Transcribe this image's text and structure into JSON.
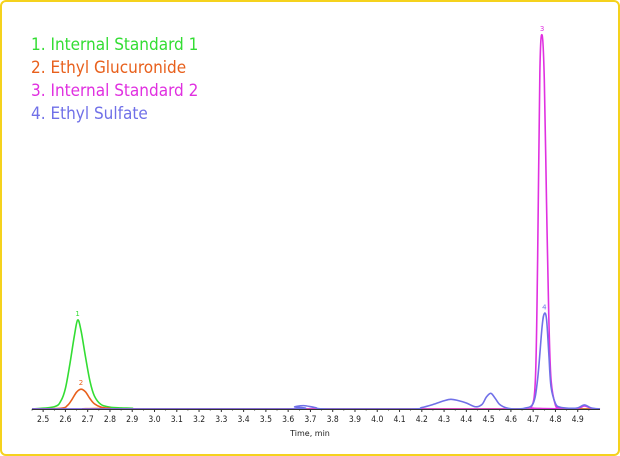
{
  "chart_data": {
    "type": "line",
    "title": "",
    "xlabel": "Time, min",
    "ylabel": "",
    "xlim": [
      2.45,
      5.0
    ],
    "ylim": [
      0,
      100
    ],
    "x_ticks": [
      "2.5",
      "2.6",
      "2.7",
      "2.8",
      "2.9",
      "3.0",
      "3.1",
      "3.2",
      "3.3",
      "3.4",
      "3.5",
      "3.6",
      "3.7",
      "3.8",
      "3.9",
      "4.0",
      "4.1",
      "4.2",
      "4.3",
      "4.4",
      "4.5",
      "4.6",
      "4.7",
      "4.8",
      "4.9"
    ],
    "legend": {
      "placement": "top-left",
      "entries": [
        {
          "label": "1. Internal Standard 1",
          "color": "#33dd33"
        },
        {
          "label": "2. Ethyl Glucuronide",
          "color": "#e8601c"
        },
        {
          "label": "3. Internal Standard 2",
          "color": "#e030e0"
        },
        {
          "label": "4. Ethyl Sulfate",
          "color": "#7070e8"
        }
      ]
    },
    "series": [
      {
        "name": "1. Internal Standard 1",
        "color": "#33dd33",
        "peak_label": "1",
        "x": [
          2.45,
          2.55,
          2.58,
          2.6,
          2.62,
          2.64,
          2.655,
          2.67,
          2.69,
          2.71,
          2.73,
          2.76,
          2.8,
          2.85,
          2.9,
          3.0,
          5.0
        ],
        "y": [
          0,
          0.6,
          2.2,
          5.5,
          12,
          19.5,
          23.8,
          21,
          14,
          7.5,
          3.5,
          1.2,
          0.5,
          0.3,
          0.2,
          0,
          0
        ]
      },
      {
        "name": "2. Ethyl Glucuronide",
        "color": "#e8601c",
        "peak_label": "2",
        "x": [
          2.45,
          2.58,
          2.61,
          2.63,
          2.65,
          2.67,
          2.69,
          2.71,
          2.73,
          2.76,
          2.8,
          2.85,
          5.0
        ],
        "y": [
          0,
          0.2,
          1,
          2.6,
          4.5,
          5.3,
          4.6,
          2.8,
          1.4,
          0.5,
          0.2,
          0,
          0
        ]
      },
      {
        "name": "3. Internal Standard 2",
        "color": "#e030e0",
        "peak_label": "3",
        "x": [
          2.45,
          4.65,
          4.69,
          4.71,
          4.72,
          4.73,
          4.74,
          4.75,
          4.76,
          4.77,
          4.78,
          4.8,
          4.82,
          4.9,
          4.93,
          4.96,
          5.0
        ],
        "y": [
          0,
          0,
          0.3,
          8,
          40,
          90,
          100,
          88,
          55,
          25,
          8,
          1,
          0.3,
          0.2,
          0.8,
          0.2,
          0
        ]
      },
      {
        "name": "4. Ethyl Sulfate",
        "color": "#7070e8",
        "peak_label": "4",
        "x": [
          2.45,
          3.58,
          3.63,
          3.67,
          3.72,
          3.78,
          4.15,
          4.2,
          4.25,
          4.3,
          4.33,
          4.36,
          4.4,
          4.44,
          4.47,
          4.49,
          4.51,
          4.53,
          4.55,
          4.58,
          4.62,
          4.66,
          4.7,
          4.72,
          4.74,
          4.75,
          4.76,
          4.77,
          4.78,
          4.8,
          4.82,
          4.86,
          4.9,
          4.93,
          4.96,
          5.0
        ],
        "y": [
          0,
          0,
          0.6,
          0.9,
          0.4,
          0,
          0,
          0.4,
          1.2,
          2.2,
          2.6,
          2.3,
          1.6,
          0.6,
          1.2,
          3.2,
          4.2,
          2.8,
          1.2,
          0.3,
          0,
          0.2,
          1.5,
          8,
          22,
          25.5,
          24,
          15,
          6,
          1.5,
          0.5,
          0.2,
          0.3,
          1.1,
          0.3,
          0
        ]
      }
    ]
  }
}
